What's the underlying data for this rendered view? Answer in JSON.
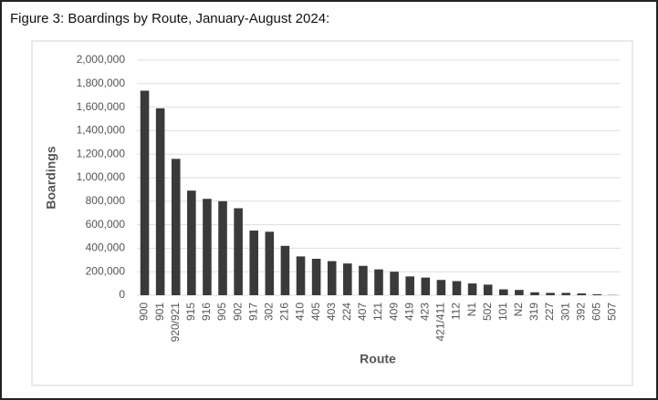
{
  "chart_data": {
    "type": "bar",
    "title": "Figure 3: Boardings by Route, January-August 2024:",
    "x_label": "Route",
    "y_label": "Boardings",
    "categories": [
      "900",
      "901",
      "920/921",
      "915",
      "916",
      "905",
      "902",
      "917",
      "302",
      "216",
      "410",
      "405",
      "403",
      "224",
      "407",
      "121",
      "409",
      "419",
      "423",
      "421/411",
      "112",
      "N1",
      "502",
      "101",
      "N2",
      "319",
      "227",
      "301",
      "392",
      "605",
      "507"
    ],
    "values": [
      1740000,
      1590000,
      1160000,
      890000,
      820000,
      800000,
      740000,
      550000,
      540000,
      420000,
      330000,
      310000,
      290000,
      270000,
      250000,
      220000,
      200000,
      160000,
      150000,
      130000,
      120000,
      100000,
      90000,
      50000,
      45000,
      25000,
      20000,
      20000,
      15000,
      8000,
      2000
    ],
    "color": "#3a3a3a",
    "ylim": [
      0,
      2000000
    ],
    "yticks": [
      0,
      {
        "value": 200000,
        "label": "200,000"
      },
      {
        "value": 400000,
        "label": "400,000"
      },
      {
        "value": 600000,
        "label": "600,000"
      },
      {
        "value": 800000,
        "label": "800,000"
      },
      {
        "value": 1000000,
        "label": "1,000,000"
      },
      {
        "value": 1200000,
        "label": "1,200,000"
      },
      {
        "value": 1400000,
        "label": "1,400,000"
      },
      {
        "value": 1600000,
        "label": "1,600,000"
      },
      {
        "value": 1800000,
        "label": "1,800,000"
      },
      {
        "value": 2000000,
        "label": "2,000,000"
      }
    ],
    "grid": true
  }
}
